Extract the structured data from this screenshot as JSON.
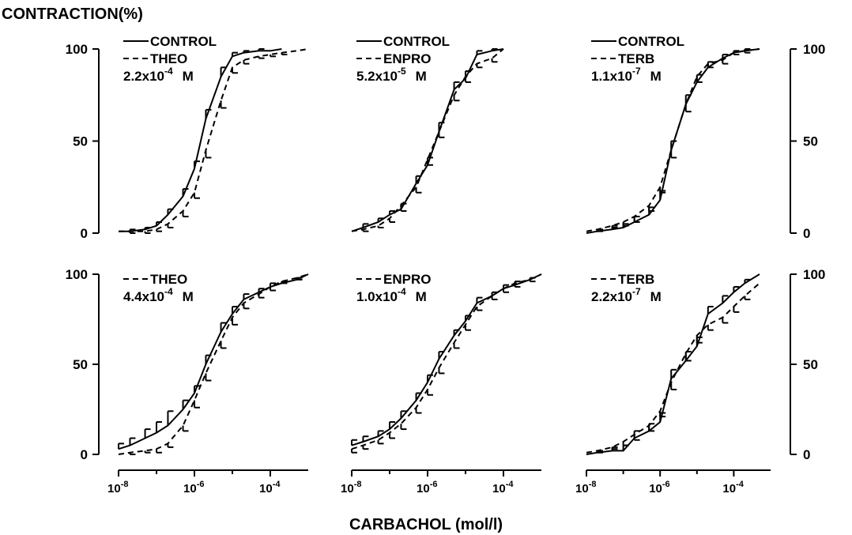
{
  "figure": {
    "ylabel": "CONTRACTION(%)",
    "xlabel": "CARBACHOL (mol/l)"
  },
  "chart_data": [
    {
      "type": "line",
      "panel": "top-left",
      "xscale": "log",
      "xlim": [
        1e-08,
        0.001
      ],
      "ylim": [
        0,
        100
      ],
      "yticks": [
        0,
        50,
        100
      ],
      "xticks": [
        1e-08,
        1e-06,
        0.0001
      ],
      "xtick_labels": [
        {
          "base": "10",
          "exp": "-8"
        },
        {
          "base": "10",
          "exp": "-6"
        },
        {
          "base": "10",
          "exp": "-4"
        }
      ],
      "legend": [
        {
          "style": "solid",
          "text": "CONTROL"
        },
        {
          "style": "dashed",
          "text": "THEO"
        },
        {
          "style": "none",
          "mantissa": "2.2x10",
          "exp": "-4",
          "unit": "M"
        }
      ],
      "series": [
        {
          "name": "CONTROL",
          "style": "solid",
          "x": [
            1e-08,
            2e-08,
            5e-08,
            1e-07,
            2e-07,
            5e-07,
            1e-06,
            2e-06,
            5e-06,
            1e-05,
            2e-05,
            5e-05,
            0.0001,
            0.0002
          ],
          "y": [
            1,
            1,
            2,
            4,
            10,
            20,
            35,
            62,
            85,
            96,
            98,
            99,
            99,
            100
          ],
          "err": [
            0,
            1,
            1,
            2,
            3,
            4,
            4,
            5,
            5,
            2,
            1,
            1,
            0,
            0
          ]
        },
        {
          "name": "THEO",
          "style": "dashed",
          "x": [
            1e-08,
            2e-08,
            5e-08,
            1e-07,
            2e-07,
            5e-07,
            1e-06,
            2e-06,
            5e-06,
            1e-05,
            2e-05,
            5e-05,
            0.0001,
            0.0002,
            0.0005,
            0.001
          ],
          "y": [
            1,
            1,
            1,
            2,
            5,
            12,
            22,
            45,
            72,
            90,
            94,
            96,
            97,
            98,
            99,
            100
          ],
          "err": [
            0,
            1,
            1,
            1,
            2,
            3,
            3,
            4,
            4,
            3,
            2,
            1,
            1,
            1,
            0,
            0
          ]
        }
      ]
    },
    {
      "type": "line",
      "panel": "top-middle",
      "xscale": "log",
      "xlim": [
        1e-08,
        0.001
      ],
      "ylim": [
        0,
        100
      ],
      "yticks": [
        0,
        50,
        100
      ],
      "xticks": [
        1e-08,
        1e-06,
        0.0001
      ],
      "xtick_labels": [
        {
          "base": "10",
          "exp": "-8"
        },
        {
          "base": "10",
          "exp": "-6"
        },
        {
          "base": "10",
          "exp": "-4"
        }
      ],
      "legend": [
        {
          "style": "solid",
          "text": "CONTROL"
        },
        {
          "style": "dashed",
          "text": "ENPRO"
        },
        {
          "style": "none",
          "mantissa": "5.2x10",
          "exp": "-5",
          "unit": "M"
        }
      ],
      "series": [
        {
          "name": "CONTROL",
          "style": "solid",
          "x": [
            1e-08,
            2e-08,
            5e-08,
            1e-07,
            2e-07,
            5e-07,
            1e-06,
            2e-06,
            5e-06,
            1e-05,
            2e-05,
            5e-05,
            0.0001
          ],
          "y": [
            1,
            3,
            6,
            10,
            13,
            27,
            37,
            55,
            78,
            84,
            97,
            99,
            100
          ],
          "err": [
            0,
            2,
            2,
            2,
            3,
            4,
            4,
            5,
            4,
            4,
            2,
            1,
            0
          ]
        },
        {
          "name": "ENPRO",
          "style": "dashed",
          "x": [
            1e-08,
            2e-08,
            5e-08,
            1e-07,
            2e-07,
            5e-07,
            1e-06,
            2e-06,
            5e-06,
            1e-05,
            2e-05,
            5e-05,
            0.0001
          ],
          "y": [
            1,
            2,
            4,
            8,
            15,
            25,
            40,
            55,
            75,
            85,
            92,
            95,
            100
          ],
          "err": [
            0,
            1,
            1,
            2,
            3,
            3,
            3,
            3,
            3,
            3,
            2,
            2,
            0
          ]
        }
      ]
    },
    {
      "type": "line",
      "panel": "top-right",
      "xscale": "log",
      "xlim": [
        1e-08,
        0.001
      ],
      "ylim": [
        0,
        100
      ],
      "yticks": [
        0,
        50,
        100
      ],
      "xticks": [
        1e-08,
        1e-06,
        0.0001
      ],
      "xtick_labels": [
        {
          "base": "10",
          "exp": "-8"
        },
        {
          "base": "10",
          "exp": "-6"
        },
        {
          "base": "10",
          "exp": "-4"
        }
      ],
      "legend": [
        {
          "style": "solid",
          "text": "CONTROL"
        },
        {
          "style": "dashed",
          "text": "TERB"
        },
        {
          "style": "none",
          "mantissa": "1.1x10",
          "exp": "-7",
          "unit": "M"
        }
      ],
      "series": [
        {
          "name": "CONTROL",
          "style": "solid",
          "x": [
            1e-08,
            2e-08,
            5e-08,
            1e-07,
            2e-07,
            5e-07,
            1e-06,
            2e-06,
            5e-06,
            1e-05,
            2e-05,
            5e-05,
            0.0001,
            0.0002,
            0.0005
          ],
          "y": [
            0,
            1,
            2,
            3,
            6,
            10,
            18,
            45,
            70,
            82,
            90,
            95,
            98,
            99,
            100
          ],
          "err": [
            0,
            1,
            2,
            2,
            3,
            4,
            5,
            5,
            5,
            4,
            3,
            2,
            1,
            1,
            0
          ]
        },
        {
          "name": "TERB",
          "style": "dashed",
          "x": [
            1e-08,
            2e-08,
            5e-08,
            1e-07,
            2e-07,
            5e-07,
            1e-06,
            2e-06,
            5e-06,
            1e-05,
            2e-05,
            5e-05,
            0.0001,
            0.0002,
            0.0005
          ],
          "y": [
            1,
            2,
            4,
            6,
            9,
            15,
            25,
            45,
            70,
            85,
            92,
            94,
            98,
            99,
            100
          ],
          "err": [
            0,
            1,
            1,
            2,
            3,
            3,
            3,
            4,
            4,
            3,
            2,
            2,
            1,
            1,
            0
          ]
        }
      ]
    },
    {
      "type": "line",
      "panel": "bottom-left",
      "xscale": "log",
      "xlim": [
        1e-08,
        0.001
      ],
      "ylim": [
        0,
        100
      ],
      "yticks": [
        0,
        50,
        100
      ],
      "xticks": [
        1e-08,
        1e-06,
        0.0001
      ],
      "xtick_labels": [
        {
          "base": "10",
          "exp": "-8"
        },
        {
          "base": "10",
          "exp": "-6"
        },
        {
          "base": "10",
          "exp": "-4"
        }
      ],
      "legend": [
        {
          "style": "dashed",
          "text": "THEO"
        },
        {
          "style": "none",
          "mantissa": "4.4x10",
          "exp": "-4",
          "unit": "M"
        }
      ],
      "series": [
        {
          "name": "CONTROL",
          "style": "solid",
          "x": [
            1e-08,
            2e-08,
            5e-08,
            1e-07,
            2e-07,
            5e-07,
            1e-06,
            2e-06,
            5e-06,
            1e-05,
            2e-05,
            5e-05,
            0.0001,
            0.0002,
            0.0005,
            0.001
          ],
          "y": [
            3,
            5,
            9,
            12,
            16,
            25,
            34,
            50,
            68,
            78,
            86,
            90,
            93,
            95,
            97,
            100
          ],
          "err": [
            3,
            4,
            5,
            6,
            8,
            5,
            4,
            5,
            5,
            4,
            3,
            2,
            2,
            1,
            1,
            0
          ]
        },
        {
          "name": "THEO",
          "style": "dashed",
          "x": [
            1e-08,
            2e-08,
            5e-08,
            1e-07,
            2e-07,
            5e-07,
            1e-06,
            2e-06,
            5e-06,
            1e-05,
            2e-05,
            5e-05,
            0.0001,
            0.0002,
            0.0005,
            0.001
          ],
          "y": [
            0,
            1,
            2,
            3,
            6,
            16,
            30,
            45,
            63,
            76,
            84,
            89,
            93,
            96,
            98,
            100
          ],
          "err": [
            0,
            1,
            1,
            2,
            2,
            3,
            4,
            4,
            4,
            4,
            3,
            2,
            2,
            1,
            1,
            0
          ]
        }
      ]
    },
    {
      "type": "line",
      "panel": "bottom-middle",
      "xscale": "log",
      "xlim": [
        1e-08,
        0.001
      ],
      "ylim": [
        0,
        100
      ],
      "yticks": [
        0,
        50,
        100
      ],
      "xticks": [
        1e-08,
        1e-06,
        0.0001
      ],
      "xtick_labels": [
        {
          "base": "10",
          "exp": "-8"
        },
        {
          "base": "10",
          "exp": "-6"
        },
        {
          "base": "10",
          "exp": "-4"
        }
      ],
      "legend": [
        {
          "style": "dashed",
          "text": "ENPRO"
        },
        {
          "style": "none",
          "mantissa": "1.0x10",
          "exp": "-4",
          "unit": "M"
        }
      ],
      "series": [
        {
          "name": "CONTROL",
          "style": "solid",
          "x": [
            1e-08,
            2e-08,
            5e-08,
            1e-07,
            2e-07,
            5e-07,
            1e-06,
            2e-06,
            5e-06,
            1e-05,
            2e-05,
            5e-05,
            0.0001,
            0.0002,
            0.0005,
            0.001
          ],
          "y": [
            5,
            7,
            10,
            14,
            20,
            30,
            40,
            53,
            66,
            74,
            84,
            88,
            92,
            94,
            97,
            100
          ],
          "err": [
            3,
            3,
            3,
            4,
            4,
            4,
            4,
            4,
            3,
            3,
            3,
            2,
            2,
            2,
            1,
            0
          ]
        },
        {
          "name": "ENPRO",
          "style": "dashed",
          "x": [
            1e-08,
            2e-08,
            5e-08,
            1e-07,
            2e-07,
            5e-07,
            1e-06,
            2e-06,
            5e-06,
            1e-05,
            2e-05,
            5e-05,
            0.0001,
            0.0002,
            0.0005,
            0.001
          ],
          "y": [
            3,
            5,
            8,
            12,
            17,
            26,
            36,
            48,
            62,
            72,
            82,
            88,
            92,
            95,
            97,
            100
          ],
          "err": [
            2,
            2,
            2,
            3,
            3,
            3,
            3,
            3,
            3,
            3,
            2,
            2,
            2,
            2,
            1,
            0
          ]
        }
      ]
    },
    {
      "type": "line",
      "panel": "bottom-right",
      "xscale": "log",
      "xlim": [
        1e-08,
        0.001
      ],
      "ylim": [
        0,
        100
      ],
      "yticks": [
        0,
        50,
        100
      ],
      "xticks": [
        1e-08,
        1e-06,
        0.0001
      ],
      "xtick_labels": [
        {
          "base": "10",
          "exp": "-8"
        },
        {
          "base": "10",
          "exp": "-6"
        },
        {
          "base": "10",
          "exp": "-4"
        }
      ],
      "legend": [
        {
          "style": "dashed",
          "text": "TERB"
        },
        {
          "style": "none",
          "mantissa": "2.2x10",
          "exp": "-7",
          "unit": "M"
        }
      ],
      "series": [
        {
          "name": "CONTROL",
          "style": "solid",
          "x": [
            1e-08,
            2e-08,
            5e-08,
            1e-07,
            2e-07,
            5e-07,
            1e-06,
            2e-06,
            5e-06,
            1e-05,
            2e-05,
            5e-05,
            0.0001,
            0.0002,
            0.0005
          ],
          "y": [
            0,
            1,
            2,
            2,
            9,
            13,
            18,
            42,
            52,
            60,
            78,
            84,
            90,
            95,
            100
          ],
          "err": [
            0,
            1,
            2,
            3,
            4,
            4,
            5,
            5,
            5,
            5,
            4,
            4,
            3,
            2,
            0
          ]
        },
        {
          "name": "TERB",
          "style": "dashed",
          "x": [
            1e-08,
            2e-08,
            5e-08,
            1e-07,
            2e-07,
            5e-07,
            1e-06,
            2e-06,
            5e-06,
            1e-05,
            2e-05,
            5e-05,
            0.0001,
            0.0002,
            0.0005
          ],
          "y": [
            1,
            2,
            4,
            7,
            11,
            16,
            24,
            40,
            56,
            66,
            72,
            76,
            82,
            88,
            95
          ],
          "err": [
            0,
            1,
            1,
            2,
            3,
            3,
            3,
            4,
            4,
            4,
            3,
            3,
            3,
            2,
            0
          ]
        }
      ]
    }
  ]
}
